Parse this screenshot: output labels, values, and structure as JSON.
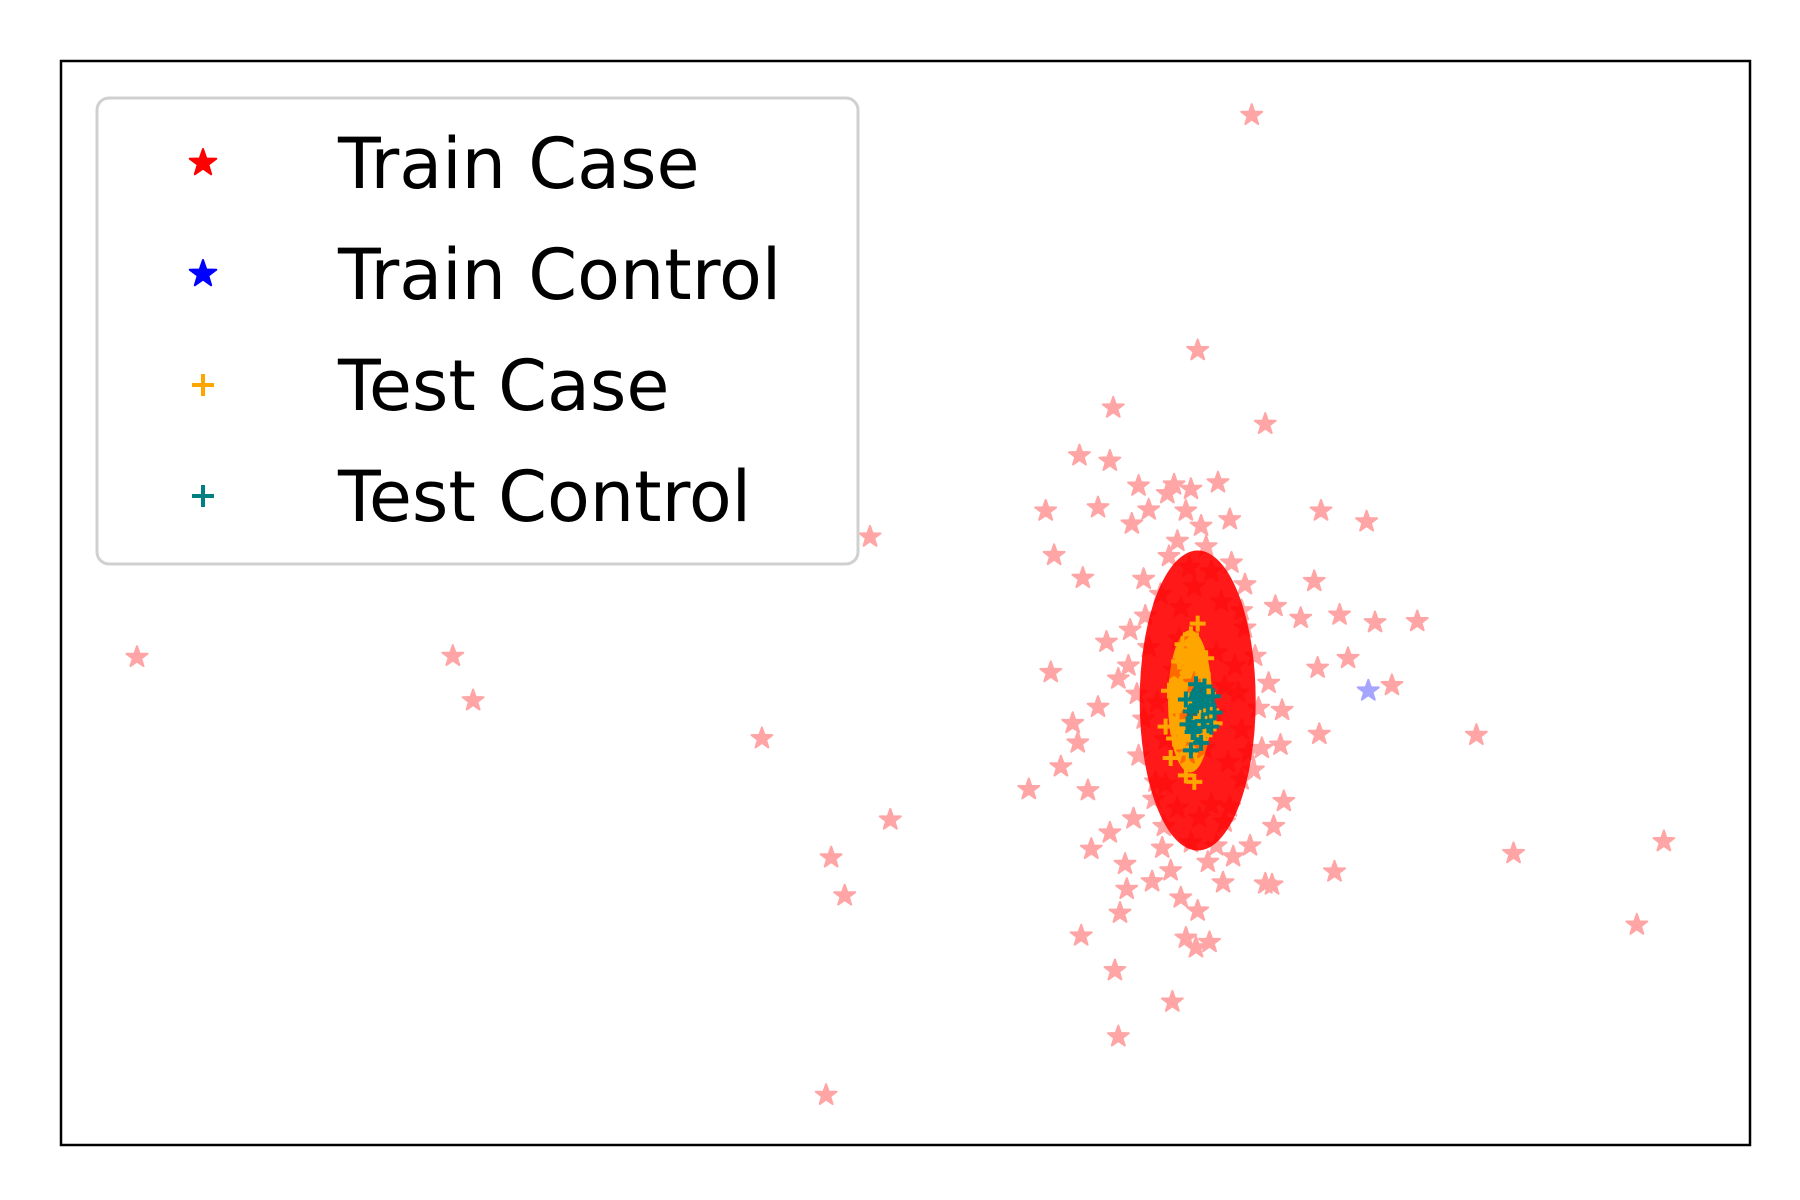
{
  "chart_data": {
    "type": "scatter",
    "title": "",
    "xlabel": "",
    "ylabel": "",
    "xlim": [
      0,
      100
    ],
    "ylim": [
      0,
      100
    ],
    "grid": false,
    "ticks_visible": false,
    "legend_position": "top-left",
    "series": [
      {
        "name": "Train Case",
        "marker": "star",
        "color": "#ff0000",
        "alpha": 0.35,
        "points": [
          [
            4.5,
            45
          ],
          [
            23.2,
            45.1
          ],
          [
            24.4,
            41
          ],
          [
            47.9,
            56.1
          ],
          [
            41.5,
            37.5
          ],
          [
            45.6,
            26.5
          ],
          [
            46.4,
            23
          ],
          [
            49.1,
            30
          ],
          [
            45.3,
            4.6
          ],
          [
            70.5,
            95
          ],
          [
            67.3,
            73.3
          ],
          [
            62.3,
            68
          ],
          [
            60.3,
            63.6
          ],
          [
            62.1,
            63.1
          ],
          [
            63.8,
            60.8
          ],
          [
            65.9,
            60.9
          ],
          [
            61.4,
            58.8
          ],
          [
            58.3,
            58.5
          ],
          [
            58.8,
            54.4
          ],
          [
            60.5,
            52.3
          ],
          [
            71.3,
            66.5
          ],
          [
            68.5,
            61.1
          ],
          [
            74.6,
            58.5
          ],
          [
            74.2,
            52
          ],
          [
            77.3,
            57.5
          ],
          [
            75.7,
            48.9
          ],
          [
            77.8,
            48.2
          ],
          [
            78.8,
            42.4
          ],
          [
            76.2,
            44.9
          ],
          [
            80.3,
            48.3
          ],
          [
            83.8,
            37.8
          ],
          [
            86,
            26.9
          ],
          [
            94.9,
            28
          ],
          [
            93.3,
            20.3
          ],
          [
            75.4,
            25.2
          ],
          [
            74.5,
            37.9
          ],
          [
            71.8,
            29.4
          ],
          [
            71.3,
            24.1
          ],
          [
            74.4,
            44
          ],
          [
            57.3,
            32.8
          ],
          [
            59.2,
            34.9
          ],
          [
            60.2,
            37.1
          ],
          [
            58.6,
            43.6
          ],
          [
            59.9,
            38.9
          ],
          [
            60.8,
            32.7
          ],
          [
            62.1,
            28.8
          ],
          [
            63,
            25.9
          ],
          [
            61,
            27.3
          ],
          [
            62.7,
            21.4
          ],
          [
            60.4,
            19.3
          ],
          [
            62.4,
            16.1
          ],
          [
            65.8,
            13.2
          ],
          [
            66.6,
            19.1
          ],
          [
            67.2,
            18.2
          ],
          [
            68,
            18.7
          ],
          [
            62.6,
            10
          ],
          [
            71.7,
            24
          ],
          [
            72.4,
            31.7
          ],
          [
            70.4,
            27.6
          ],
          [
            69.9,
            33.7
          ],
          [
            63.4,
            57.3
          ],
          [
            66.6,
            58.5
          ],
          [
            64.4,
            58.6
          ],
          [
            69.2,
            57.7
          ],
          [
            71.9,
            49.7
          ],
          [
            73.4,
            48.6
          ],
          [
            61.9,
            46.4
          ],
          [
            63.2,
            44.2
          ],
          [
            61.4,
            40.4
          ],
          [
            64.1,
            39.3
          ],
          [
            71.1,
            36.6
          ],
          [
            72.2,
            36.9
          ],
          [
            63.5,
            30.1
          ],
          [
            65.2,
            27.4
          ],
          [
            67.9,
            26.1
          ],
          [
            69.4,
            26.6
          ],
          [
            67.3,
            21.6
          ],
          [
            66.3,
            22.8
          ],
          [
            64.6,
            24.3
          ],
          [
            63.1,
            23.6
          ],
          [
            65.5,
            60.1
          ],
          [
            66.9,
            60.5
          ],
          [
            69.3,
            53.7
          ],
          [
            70.1,
            51.7
          ],
          [
            64.1,
            52.2
          ],
          [
            65.6,
            54.3
          ],
          [
            67.8,
            55.2
          ],
          [
            70.7,
            45.1
          ],
          [
            71.5,
            42.6
          ],
          [
            72.3,
            40.1
          ],
          [
            62.6,
            43
          ],
          [
            63.3,
            47.5
          ],
          [
            64.2,
            48.8
          ],
          [
            63.8,
            35.9
          ],
          [
            64.8,
            33.5
          ],
          [
            69.9,
            38.3
          ],
          [
            70.6,
            34.6
          ],
          [
            66.1,
            31.1
          ],
          [
            68.1,
            31.4
          ],
          [
            67.4,
            30.2
          ],
          [
            65.3,
            29.4
          ],
          [
            68.9,
            29.8
          ],
          [
            65.4,
            33.3
          ],
          [
            69.1,
            35.3
          ],
          [
            66.7,
            36.1
          ],
          [
            67.7,
            36.6
          ],
          [
            65.9,
            43.8
          ],
          [
            68.4,
            45.4
          ],
          [
            66.3,
            49.6
          ],
          [
            68.7,
            50.1
          ],
          [
            67.1,
            51.5
          ],
          [
            64.9,
            40.8
          ],
          [
            69.7,
            41.7
          ],
          [
            70.1,
            47.7
          ],
          [
            68.3,
            39.8
          ],
          [
            66.5,
            39.4
          ],
          [
            64.4,
            45.9
          ],
          [
            69.5,
            44.2
          ],
          [
            67.1,
            42.6
          ],
          [
            68.9,
            42.3
          ],
          [
            66.2,
            46.7
          ],
          [
            65.4,
            37.4
          ],
          [
            70.3,
            36.2
          ],
          [
            64.7,
            31.9
          ],
          [
            69.2,
            31.2
          ],
          [
            66.9,
            27.9
          ],
          [
            68.4,
            27.6
          ],
          [
            65.7,
            25.3
          ],
          [
            68.8,
            24.2
          ],
          [
            63.7,
            41.6
          ],
          [
            70.9,
            40.3
          ],
          [
            66.8,
            53.3
          ],
          [
            65.1,
            50.8
          ],
          [
            69.9,
            49.3
          ],
          [
            67.5,
            57.1
          ],
          [
            66.1,
            55.7
          ],
          [
            68.1,
            52.9
          ]
        ]
      },
      {
        "name": "Train Control",
        "marker": "star",
        "color": "#0000ff",
        "alpha": 0.35,
        "points": [
          [
            77.4,
            41.9
          ]
        ]
      },
      {
        "name": "Test Case",
        "marker": "plus",
        "color": "#ffa500",
        "alpha": 1.0,
        "points": [
          [
            66.8,
            44
          ],
          [
            67.2,
            45.5
          ],
          [
            66.3,
            42.5
          ],
          [
            67.6,
            43.4
          ],
          [
            66.5,
            40.8
          ],
          [
            67.9,
            41.6
          ],
          [
            66.1,
            39.1
          ],
          [
            67.4,
            39.4
          ],
          [
            65.9,
            37.5
          ],
          [
            67.7,
            37.8
          ],
          [
            66.7,
            36.1
          ],
          [
            65.7,
            35.7
          ],
          [
            68.1,
            40.1
          ],
          [
            65.6,
            41.9
          ],
          [
            66.9,
            47.1
          ],
          [
            66.4,
            46.2
          ],
          [
            67.3,
            48.1
          ],
          [
            66.6,
            34.1
          ],
          [
            67.1,
            33.5
          ],
          [
            65.4,
            38.6
          ],
          [
            68.3,
            38.9
          ],
          [
            66.2,
            44.6
          ],
          [
            67.8,
            44.9
          ]
        ]
      },
      {
        "name": "Test Control",
        "marker": "plus",
        "color": "#008080",
        "alpha": 1.0,
        "points": [
          [
            67.3,
            41.6
          ],
          [
            67.9,
            40.6
          ],
          [
            66.9,
            40
          ],
          [
            67.6,
            39.1
          ],
          [
            67,
            38.1
          ],
          [
            68.2,
            41.4
          ],
          [
            66.6,
            41.1
          ],
          [
            67.5,
            37.1
          ],
          [
            68.1,
            38.6
          ],
          [
            66.7,
            38.8
          ],
          [
            67.2,
            42.5
          ],
          [
            67.7,
            42.3
          ],
          [
            66.9,
            36.4
          ],
          [
            68.3,
            39.9
          ]
        ]
      }
    ]
  }
}
